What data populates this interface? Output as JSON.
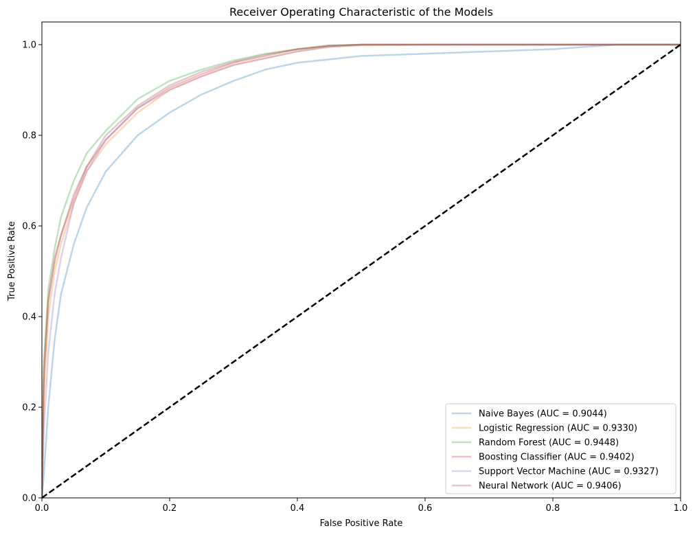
{
  "chart_data": {
    "type": "line",
    "title": "Receiver Operating Characteristic of the Models",
    "xlabel": "False Positive Rate",
    "ylabel": "True Positive Rate",
    "xlim": [
      0,
      1
    ],
    "ylim": [
      0,
      1.05
    ],
    "xticks": [
      "0.0",
      "0.2",
      "0.4",
      "0.6",
      "0.8",
      "1.0"
    ],
    "yticks": [
      "0.0",
      "0.2",
      "0.4",
      "0.6",
      "0.8",
      "1.0"
    ],
    "grid": false,
    "legend_position": "lower-right",
    "series": [
      {
        "name": "Naive Bayes (AUC = 0.9044)",
        "color": "#1f77b4",
        "x": [
          0,
          0.003,
          0.01,
          0.02,
          0.03,
          0.05,
          0.07,
          0.1,
          0.15,
          0.2,
          0.25,
          0.3,
          0.35,
          0.4,
          0.5,
          0.6,
          0.7,
          0.8,
          0.9,
          1.0
        ],
        "y": [
          0,
          0.05,
          0.2,
          0.35,
          0.45,
          0.56,
          0.64,
          0.72,
          0.8,
          0.85,
          0.89,
          0.92,
          0.945,
          0.96,
          0.975,
          0.98,
          0.985,
          0.99,
          1.0,
          1.0
        ]
      },
      {
        "name": "Logistic Regression (AUC = 0.9330)",
        "color": "#ff7f0e",
        "x": [
          0,
          0.003,
          0.01,
          0.02,
          0.03,
          0.05,
          0.07,
          0.1,
          0.15,
          0.2,
          0.25,
          0.3,
          0.35,
          0.4,
          0.45,
          0.5,
          0.6,
          0.8,
          1.0
        ],
        "y": [
          0,
          0.22,
          0.4,
          0.5,
          0.56,
          0.65,
          0.72,
          0.78,
          0.85,
          0.9,
          0.93,
          0.955,
          0.97,
          0.985,
          0.995,
          0.998,
          1.0,
          1.0,
          1.0
        ]
      },
      {
        "name": "Random Forest (AUC = 0.9448)",
        "color": "#2ca02c",
        "x": [
          0,
          0.003,
          0.01,
          0.02,
          0.03,
          0.05,
          0.07,
          0.1,
          0.15,
          0.2,
          0.25,
          0.3,
          0.35,
          0.4,
          0.45,
          0.5,
          0.6,
          0.8,
          1.0
        ],
        "y": [
          0,
          0.3,
          0.46,
          0.55,
          0.62,
          0.7,
          0.76,
          0.81,
          0.88,
          0.92,
          0.945,
          0.965,
          0.98,
          0.99,
          0.998,
          1.0,
          1.0,
          1.0,
          1.0
        ]
      },
      {
        "name": "Boosting Classifier (AUC = 0.9402)",
        "color": "#d62728",
        "x": [
          0,
          0.003,
          0.01,
          0.02,
          0.03,
          0.05,
          0.07,
          0.1,
          0.15,
          0.2,
          0.25,
          0.3,
          0.35,
          0.4,
          0.45,
          0.5,
          0.6,
          0.8,
          1.0
        ],
        "y": [
          0,
          0.28,
          0.44,
          0.53,
          0.58,
          0.66,
          0.73,
          0.79,
          0.86,
          0.905,
          0.935,
          0.96,
          0.975,
          0.99,
          0.997,
          1.0,
          1.0,
          1.0,
          1.0
        ]
      },
      {
        "name": "Support Vector Machine (AUC = 0.9327)",
        "color": "#9467bd",
        "x": [
          0,
          0.003,
          0.01,
          0.02,
          0.03,
          0.05,
          0.07,
          0.1,
          0.15,
          0.2,
          0.25,
          0.3,
          0.35,
          0.4,
          0.45,
          0.5,
          0.6,
          0.8,
          1.0
        ],
        "y": [
          0,
          0.15,
          0.32,
          0.45,
          0.53,
          0.65,
          0.72,
          0.79,
          0.86,
          0.9,
          0.93,
          0.955,
          0.97,
          0.985,
          0.995,
          1.0,
          1.0,
          1.0,
          1.0
        ]
      },
      {
        "name": "Neural Network (AUC = 0.9406)",
        "color": "#8c564b",
        "x": [
          0,
          0.003,
          0.01,
          0.02,
          0.03,
          0.05,
          0.07,
          0.1,
          0.15,
          0.2,
          0.25,
          0.3,
          0.35,
          0.4,
          0.45,
          0.5,
          0.6,
          0.8,
          1.0
        ],
        "y": [
          0,
          0.26,
          0.43,
          0.52,
          0.58,
          0.67,
          0.73,
          0.8,
          0.865,
          0.91,
          0.94,
          0.962,
          0.978,
          0.99,
          0.998,
          1.0,
          1.0,
          1.0,
          1.0
        ]
      }
    ],
    "reference_line": {
      "x": [
        0,
        1
      ],
      "y": [
        0,
        1
      ],
      "color": "#000000",
      "style": "dashed"
    }
  }
}
